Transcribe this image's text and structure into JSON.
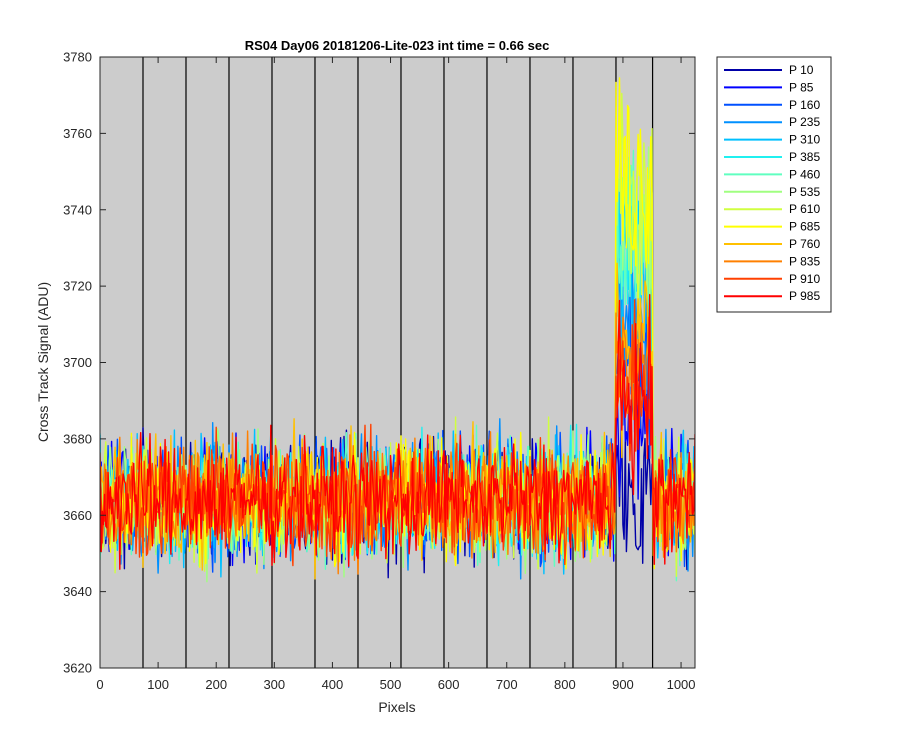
{
  "chart_data": {
    "type": "line",
    "title": "RS04 Day06 20181206-Lite-023 int time = 0.66 sec",
    "xlabel": "Pixels",
    "ylabel": "Cross Track Signal (ADU)",
    "xlim": [
      0,
      1024
    ],
    "ylim": [
      3620,
      3780
    ],
    "xticks": [
      0,
      100,
      200,
      300,
      400,
      500,
      600,
      700,
      800,
      900,
      1000
    ],
    "yticks": [
      3620,
      3640,
      3660,
      3680,
      3700,
      3720,
      3740,
      3760,
      3780
    ],
    "grid": false,
    "background_color": "#cccccc",
    "legend_placement": "outside-top-right",
    "vertical_lines_x": [
      74,
      148,
      222,
      296,
      370,
      444,
      518,
      592,
      666,
      740,
      814,
      888,
      951
    ],
    "vertical_line_color": "#000000",
    "baseline_mean": 3664,
    "baseline_noise_range": [
      3638,
      3696
    ],
    "bright_region_x": [
      888,
      951
    ],
    "series": [
      {
        "name": "P 10",
        "color": "#0000a8",
        "peak": 3668
      },
      {
        "name": "P 85",
        "color": "#0000ff",
        "peak": 3690
      },
      {
        "name": "P 160",
        "color": "#0050ff",
        "peak": 3708
      },
      {
        "name": "P 235",
        "color": "#0090ff",
        "peak": 3722
      },
      {
        "name": "P 310",
        "color": "#00c0ff",
        "peak": 3735
      },
      {
        "name": "P 385",
        "color": "#20f0f0",
        "peak": 3742
      },
      {
        "name": "P 460",
        "color": "#60ffc0",
        "peak": 3748
      },
      {
        "name": "P 535",
        "color": "#a0ff80",
        "peak": 3755
      },
      {
        "name": "P 610",
        "color": "#d0ff40",
        "peak": 3762
      },
      {
        "name": "P 685",
        "color": "#ffff00",
        "peak": 3768
      },
      {
        "name": "P 760",
        "color": "#ffc000",
        "peak": 3718
      },
      {
        "name": "P 835",
        "color": "#ff8000",
        "peak": 3708
      },
      {
        "name": "P 910",
        "color": "#ff4000",
        "peak": 3700
      },
      {
        "name": "P 985",
        "color": "#ff0000",
        "peak": 3695
      }
    ]
  }
}
